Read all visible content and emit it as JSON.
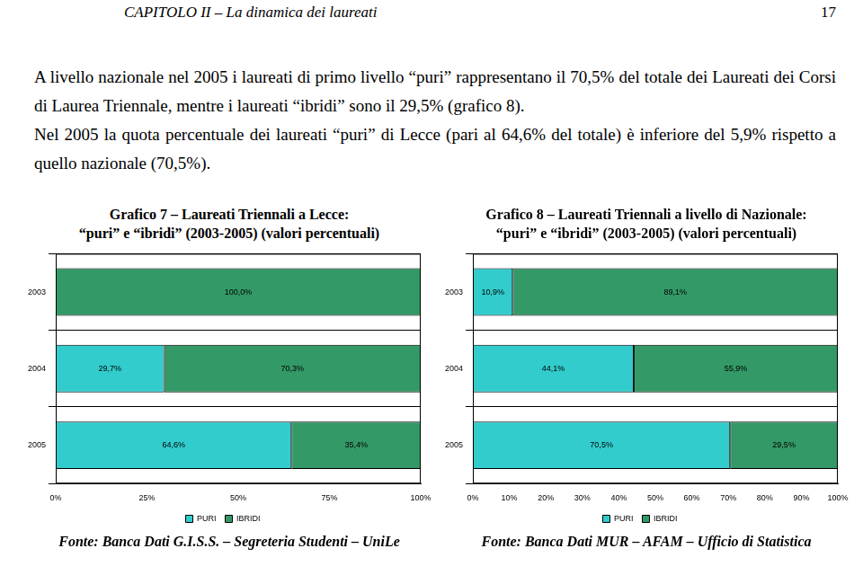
{
  "header": {
    "title": "CAPITOLO II – La dinamica dei laureati",
    "page": "17"
  },
  "paragraphs": [
    "A livello nazionale nel 2005 i laureati di primo livello “puri” rappresentano il 70,5% del totale dei Laureati dei Corsi di Laurea Triennale, mentre i laureati “ibridi” sono il 29,5% (grafico 8).",
    "Nel 2005 la quota percentuale dei laureati “puri” di Lecce (pari al 64,6% del totale) è inferiore del 5,9% rispetto a quello nazionale (70,5%)."
  ],
  "chart_data": [
    {
      "type": "bar",
      "title": [
        "Grafico 7 – Laureati Triennali a Lecce:",
        "“puri” e “ibridi” (2003-2005) (valori percentuali)"
      ],
      "annotations": [
        "Fonte: Banca Dati G.I.S.S. – Segreteria Studenti – UniLe"
      ],
      "orientation": "horizontal",
      "stacked": true,
      "data_labels": true,
      "grid": true,
      "legend": "bottom",
      "categories": [
        "2003",
        "2004",
        "2005"
      ],
      "series": [
        {
          "name": "PURI",
          "color": "#33cccc",
          "values": [
            0,
            29.7,
            64.6
          ],
          "value_labels": [
            null,
            "29,7%",
            "64,6%"
          ]
        },
        {
          "name": "IBRIDI",
          "color": "#339966",
          "values": [
            100,
            70.3,
            35.4
          ],
          "value_labels": [
            "100,0%",
            "70,3%",
            "35,4%"
          ]
        }
      ],
      "xlim": [
        0,
        100
      ],
      "xticks": [
        {
          "value": 0,
          "label": "0%"
        },
        {
          "value": 25,
          "label": "25%"
        },
        {
          "value": 50,
          "label": "50%"
        },
        {
          "value": 75,
          "label": "75%"
        },
        {
          "value": 100,
          "label": "100%"
        }
      ]
    },
    {
      "type": "bar",
      "title": [
        "Grafico 8 – Laureati Triennali a livello di Nazionale:",
        "“puri” e “ibridi” (2003-2005) (valori percentuali)"
      ],
      "annotations": [
        "Fonte: Banca Dati MUR – AFAM – Ufficio di Statistica"
      ],
      "orientation": "horizontal",
      "stacked": true,
      "data_labels": true,
      "grid": true,
      "legend": "bottom",
      "categories": [
        "2003",
        "2004",
        "2005"
      ],
      "series": [
        {
          "name": "PURI",
          "color": "#33cccc",
          "values": [
            10.9,
            44.1,
            70.5
          ],
          "value_labels": [
            "10,9%",
            "44,1%",
            "70,5%"
          ]
        },
        {
          "name": "IBRIDI",
          "color": "#339966",
          "values": [
            89.1,
            55.9,
            29.5
          ],
          "value_labels": [
            "89,1%",
            "55,9%",
            "29,5%"
          ]
        }
      ],
      "xlim": [
        0,
        100
      ],
      "xticks": [
        {
          "value": 0,
          "label": "0%"
        },
        {
          "value": 10,
          "label": "10%"
        },
        {
          "value": 20,
          "label": "20%"
        },
        {
          "value": 30,
          "label": "30%"
        },
        {
          "value": 40,
          "label": "40%"
        },
        {
          "value": 50,
          "label": "50%"
        },
        {
          "value": 60,
          "label": "60%"
        },
        {
          "value": 70,
          "label": "70%"
        },
        {
          "value": 80,
          "label": "80%"
        },
        {
          "value": 90,
          "label": "90%"
        },
        {
          "value": 100,
          "label": "100%"
        }
      ]
    }
  ]
}
